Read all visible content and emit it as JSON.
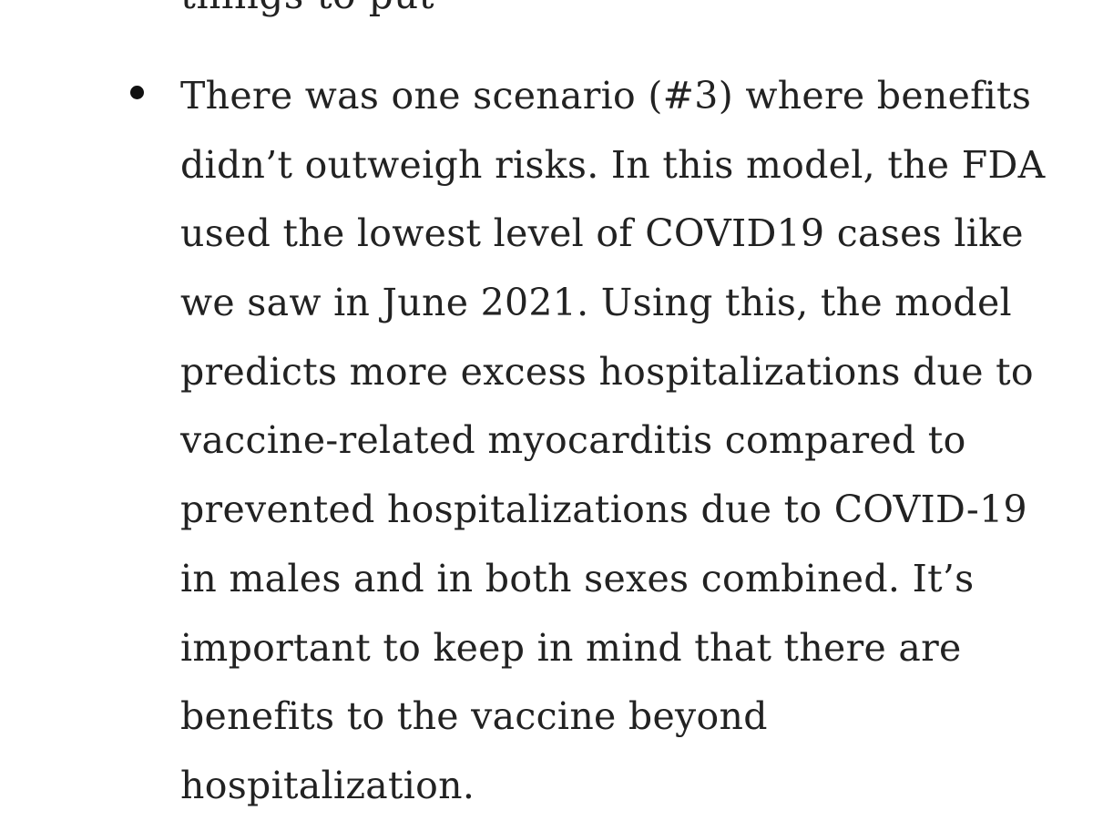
{
  "partial_line_text": "things to put",
  "bullet_paragraph": {
    "lines": [
      "There was one scenario (#3) where benefits",
      "didn’t outweigh risks. In this model, the FDA",
      "used the lowest level of COVID19 cases like",
      "we saw in June 2021. Using this, the model",
      "predicts more excess hospitalizations due to",
      "vaccine-related myocarditis compared to",
      "prevented hospitalizations due to COVID-19",
      "in males and in both sexes combined. It’s",
      "important to keep in mind that there are",
      "benefits to the vaccine beyond",
      "hospitalization."
    ]
  }
}
